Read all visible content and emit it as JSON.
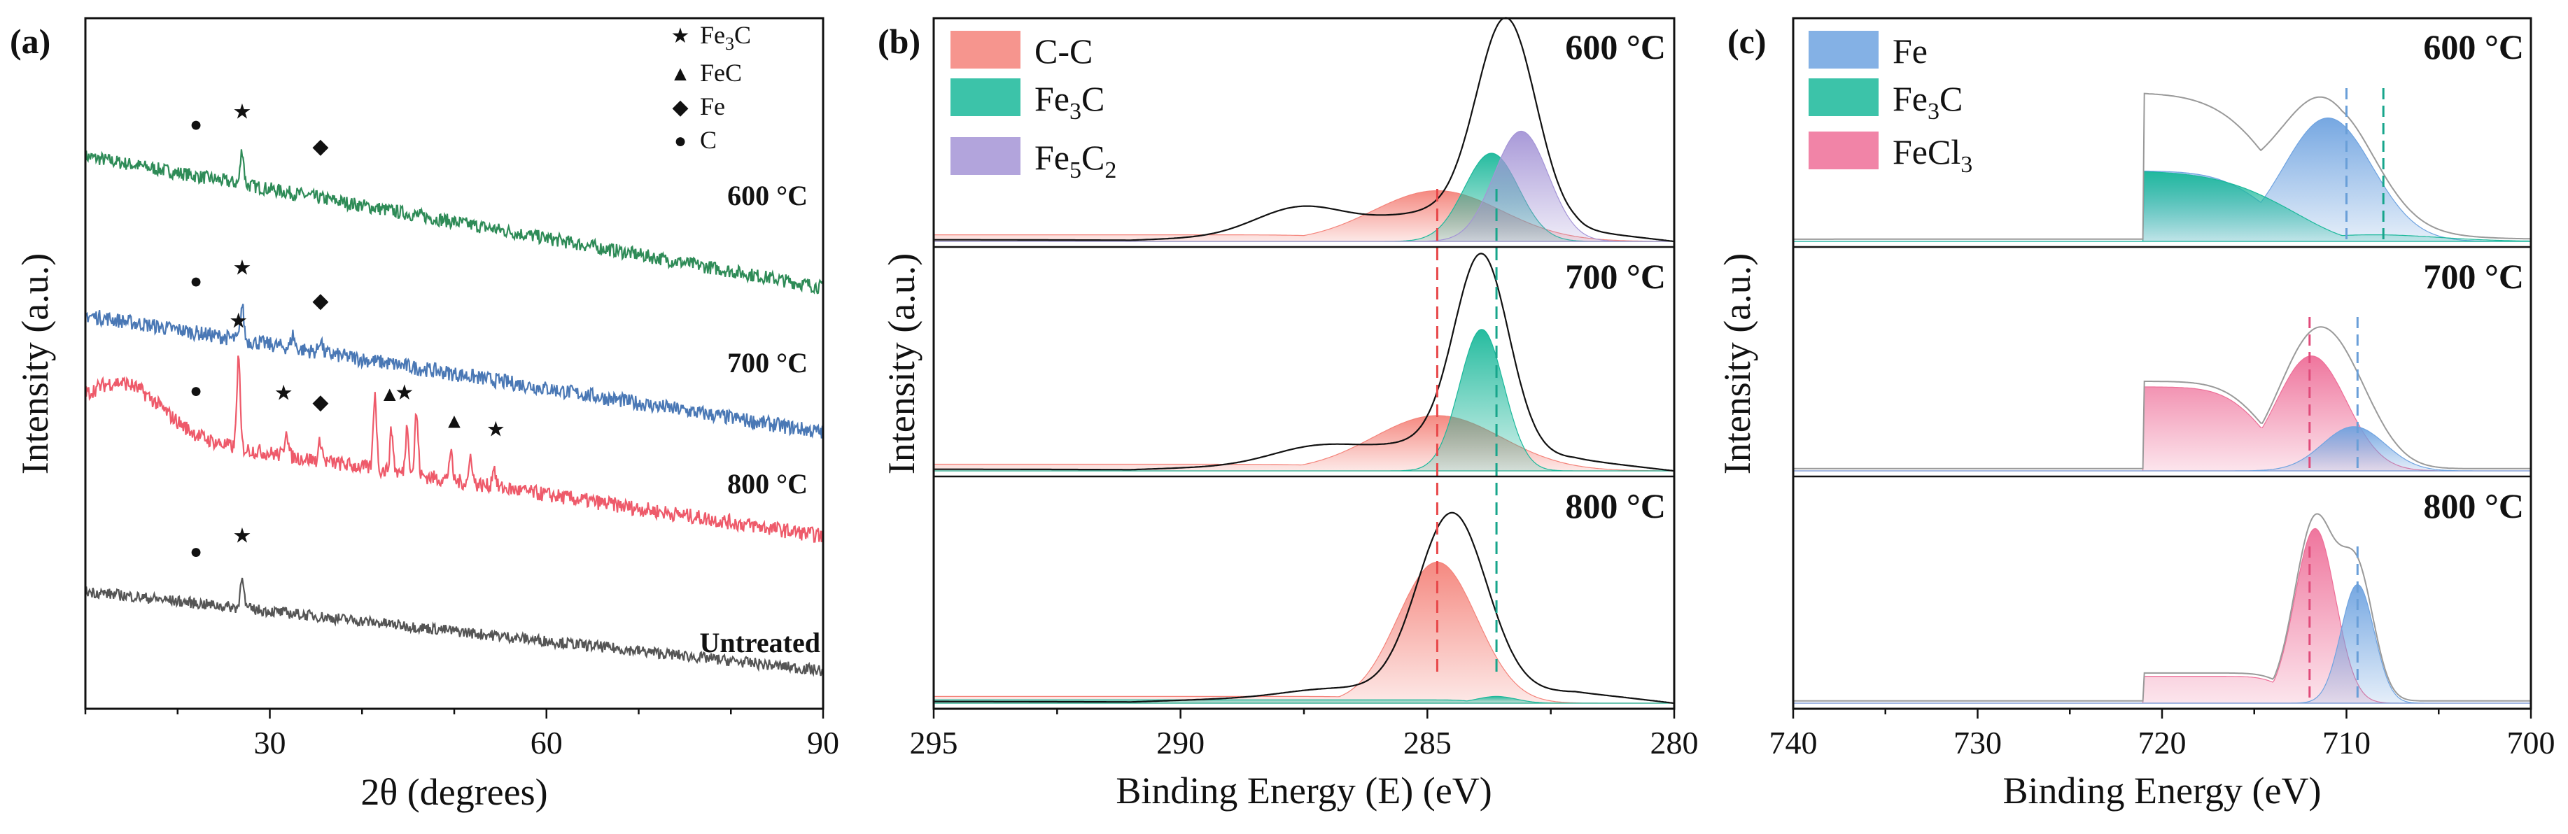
{
  "colors": {
    "xrd_600": "#2e8b57",
    "xrd_700": "#4a78b5",
    "xrd_800": "#ee5a6a",
    "xrd_untreated": "#555555",
    "c_c": "#f4837a",
    "fe3c": "#1ab89a",
    "fe5c2": "#a494d6",
    "fe": "#6fa3e0",
    "fecl3": "#ee6e98",
    "envelope": "#111111",
    "ref_red": "#e8484a",
    "ref_teal": "#17a58b",
    "ref_blue": "#6a9fd8",
    "ref_pink": "#e04a7a"
  },
  "chart_data": [
    {
      "panel": "(a)",
      "type": "line",
      "xlabel": "2θ (degrees)",
      "ylabel": "Intensity (a.u.)",
      "xlim": [
        10,
        90
      ],
      "xticks": [
        30,
        60,
        90
      ],
      "legend": {
        "position": "top-right",
        "entries": [
          {
            "symbol": "★",
            "name": "Fe3C",
            "label_main": "Fe",
            "label_sub": "3",
            "label_tail": "C"
          },
          {
            "symbol": "▲",
            "name": "FeC",
            "label_main": "FeC",
            "label_sub": "",
            "label_tail": ""
          },
          {
            "symbol": "◆",
            "name": "Fe",
            "label_main": "Fe",
            "label_sub": "",
            "label_tail": ""
          },
          {
            "symbol": "●",
            "name": "C",
            "label_main": "C",
            "label_sub": "",
            "label_tail": ""
          }
        ]
      },
      "series": [
        {
          "name": "600 °C",
          "start": 0.8,
          "end": 0.61,
          "noise": 0.01,
          "peaks": [
            {
              "x": 27.0,
              "h": 0.05
            }
          ],
          "markers": [
            {
              "symbol": "●",
              "x": 22
            },
            {
              "symbol": "★",
              "x": 27
            },
            {
              "symbol": "◆",
              "x": 35.5
            }
          ]
        },
        {
          "name": "700 °C",
          "start": 0.57,
          "end": 0.4,
          "noise": 0.011,
          "peaks": [
            {
              "x": 27.0,
              "h": 0.05
            },
            {
              "x": 32.5,
              "h": 0.02
            },
            {
              "x": 35.5,
              "h": 0.02
            }
          ],
          "markers": [
            {
              "symbol": "●",
              "x": 22
            },
            {
              "symbol": "★",
              "x": 27
            },
            {
              "symbol": "◆",
              "x": 35.5
            }
          ]
        },
        {
          "name": "800 °C",
          "start": 0.41,
          "end": 0.25,
          "noise": 0.011,
          "hump": 0.07,
          "peaks": [
            {
              "x": 26.6,
              "h": 0.13
            },
            {
              "x": 31.8,
              "h": 0.04
            },
            {
              "x": 35.5,
              "h": 0.03
            },
            {
              "x": 41.4,
              "h": 0.11
            },
            {
              "x": 43.2,
              "h": 0.06
            },
            {
              "x": 44.9,
              "h": 0.07
            },
            {
              "x": 45.9,
              "h": 0.09
            },
            {
              "x": 49.6,
              "h": 0.04
            },
            {
              "x": 51.8,
              "h": 0.04
            },
            {
              "x": 54.3,
              "h": 0.03
            }
          ],
          "markers": [
            {
              "symbol": "●",
              "x": 22
            },
            {
              "symbol": "★",
              "x": 26.6
            },
            {
              "symbol": "★",
              "x": 31.5
            },
            {
              "symbol": "◆",
              "x": 35.5
            },
            {
              "symbol": "▲",
              "x": 43.0
            },
            {
              "symbol": "★",
              "x": 44.6
            },
            {
              "symbol": "▲",
              "x": 50.0
            },
            {
              "symbol": "★",
              "x": 54.5
            }
          ]
        },
        {
          "name": "Untreated",
          "start": 0.17,
          "end": 0.055,
          "noise": 0.008,
          "peaks": [
            {
              "x": 27.0,
              "h": 0.05
            }
          ],
          "markers": [
            {
              "symbol": "●",
              "x": 22
            },
            {
              "symbol": "★",
              "x": 27
            }
          ]
        }
      ]
    },
    {
      "panel": "(b)",
      "type": "area",
      "xlabel": "Binding Energy (E) (eV)",
      "ylabel": "Intensity (a.u.)",
      "xlim": [
        295,
        280
      ],
      "xticks": [
        295,
        290,
        285,
        280
      ],
      "legend": {
        "position": "top-left",
        "entries": [
          {
            "name": "C-C",
            "label_main": "C-C",
            "label_sub": "",
            "label_tail": ""
          },
          {
            "name": "Fe3C",
            "label_main": "Fe",
            "label_sub": "3",
            "label_tail": "C"
          },
          {
            "name": "Fe5C2",
            "label_main": "Fe",
            "label_sub": "5",
            "label_tail": "C",
            "label_sub2": "2"
          }
        ]
      },
      "reference_lines": [
        {
          "x": 284.8,
          "color": "ref_red"
        },
        {
          "x": 283.6,
          "color": "ref_teal"
        }
      ],
      "subpanels": [
        {
          "label": "600 °C",
          "envelope": {
            "baseline": 0.04,
            "shoulder_x": 287.6,
            "shoulder_h": 0.12,
            "components": [
              {
                "c": 284.8,
                "w": 1.3,
                "h": 0.08
              },
              {
                "c": 283.4,
                "w": 0.6,
                "h": 0.92
              }
            ]
          },
          "components": [
            {
              "name": "C-C",
              "c": 284.8,
              "w": 1.3,
              "h": 0.23,
              "tail": 0.03
            },
            {
              "name": "Fe3C",
              "c": 283.7,
              "w": 0.55,
              "h": 0.4,
              "tail": 0.0
            },
            {
              "name": "Fe5C2",
              "c": 283.1,
              "w": 0.55,
              "h": 0.5,
              "tail": 0.0
            }
          ]
        },
        {
          "label": "700 °C",
          "envelope": {
            "baseline": 0.04,
            "shoulder_x": 287.3,
            "shoulder_h": 0.07,
            "components": [
              {
                "c": 284.8,
                "w": 1.3,
                "h": 0.08
              },
              {
                "c": 283.9,
                "w": 0.55,
                "h": 0.87
              }
            ]
          },
          "components": [
            {
              "name": "C-C",
              "c": 284.8,
              "w": 1.3,
              "h": 0.25,
              "tail": 0.03
            },
            {
              "name": "Fe3C",
              "c": 283.9,
              "w": 0.45,
              "h": 0.64,
              "tail": 0.0
            }
          ]
        },
        {
          "label": "800 °C",
          "envelope": {
            "baseline": 0.04,
            "shoulder_x": 287.0,
            "shoulder_h": 0.03,
            "components": [
              {
                "c": 284.5,
                "w": 0.7,
                "h": 0.8
              }
            ]
          },
          "components": [
            {
              "name": "C-C",
              "c": 284.8,
              "w": 0.8,
              "h": 0.63,
              "tail": 0.03
            },
            {
              "name": "Fe3C",
              "c": 283.6,
              "w": 0.4,
              "h": 0.03,
              "tail": 0.015
            }
          ]
        }
      ]
    },
    {
      "panel": "(c)",
      "type": "area",
      "xlabel": "Binding Energy (eV)",
      "ylabel": "Intensity (a.u.)",
      "xlim": [
        740,
        700
      ],
      "xticks": [
        740,
        730,
        720,
        710,
        700
      ],
      "legend": {
        "position": "top-left",
        "entries": [
          {
            "name": "Fe",
            "label_main": "Fe",
            "label_sub": "",
            "label_tail": ""
          },
          {
            "name": "Fe3C",
            "label_main": "Fe",
            "label_sub": "3",
            "label_tail": "C"
          },
          {
            "name": "FeCl3",
            "label_main": "FeCl",
            "label_sub": "3",
            "label_tail": ""
          }
        ]
      },
      "reference_lines": [
        {
          "x": 712.0,
          "color": "ref_pink",
          "panels": [
            1,
            2
          ]
        },
        {
          "x": 710.0,
          "color": "ref_blue",
          "panels": [
            0
          ]
        },
        {
          "x": 709.4,
          "color": "ref_blue",
          "panels": [
            1,
            2
          ]
        },
        {
          "x": 708.0,
          "color": "ref_teal",
          "panels": [
            0
          ]
        }
      ],
      "subpanels": [
        {
          "label": "600 °C",
          "components": [
            {
              "name": "Fe",
              "c": 711.0,
              "w": 2.4,
              "h": 0.56,
              "tail": 0.32,
              "tail_end": 721
            },
            {
              "name": "Fe3C",
              "c": 708.5,
              "w": 3.5,
              "h": 0.03,
              "tail": 0.32,
              "tail_end": 721
            }
          ]
        },
        {
          "label": "700 °C",
          "components": [
            {
              "name": "FeCl3",
              "c": 711.9,
              "w": 1.9,
              "h": 0.52,
              "tail": 0.38,
              "tail_end": 721
            },
            {
              "name": "Fe",
              "c": 709.6,
              "w": 1.7,
              "h": 0.2,
              "tail": 0.0,
              "tail_end": 721
            }
          ]
        },
        {
          "label": "800 °C",
          "components": [
            {
              "name": "FeCl3",
              "c": 711.7,
              "w": 1.1,
              "h": 0.78,
              "tail": 0.12,
              "tail_end": 721
            },
            {
              "name": "Fe",
              "c": 709.4,
              "w": 0.9,
              "h": 0.53,
              "tail": 0.0,
              "tail_end": 721
            }
          ]
        }
      ]
    }
  ]
}
